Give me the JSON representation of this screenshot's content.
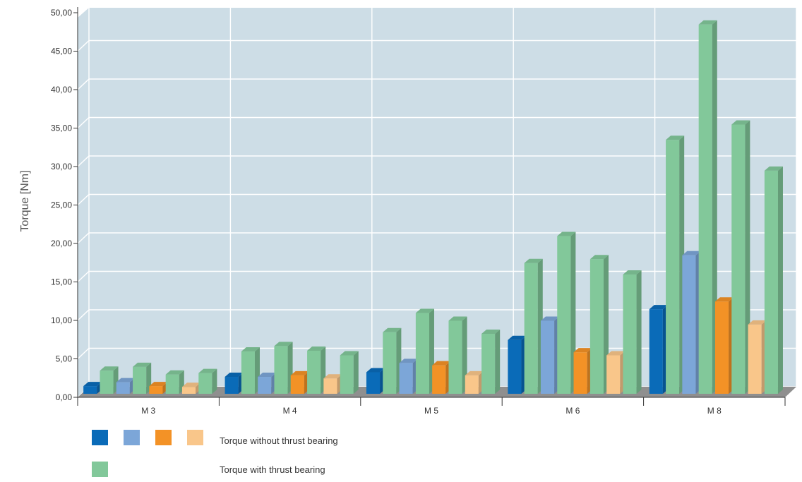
{
  "chart_data": {
    "type": "bar",
    "title": "",
    "xlabel": "",
    "ylabel": "Torque [Nm]",
    "ylim": [
      0,
      50
    ],
    "y_ticks": [
      "0,00",
      "5,00",
      "10,00",
      "15,00",
      "20,00",
      "25,00",
      "30,00",
      "35,00",
      "40,00",
      "45,00",
      "50,00"
    ],
    "categories": [
      "M 3",
      "M 4",
      "M 5",
      "M 6",
      "M 8"
    ],
    "grid": true,
    "three_d": true,
    "legend_position": "bottom",
    "series": [
      {
        "color": "#0a6bb8",
        "values": [
          1.0,
          2.2,
          2.8,
          7.0,
          11.0
        ]
      },
      {
        "color": "#82c89a",
        "values": [
          3.0,
          5.5,
          8.0,
          17.0,
          33.0
        ]
      },
      {
        "color": "#7ca6d8",
        "values": [
          1.5,
          2.2,
          4.0,
          9.5,
          18.0
        ]
      },
      {
        "color": "#82c89a",
        "values": [
          3.5,
          6.2,
          10.5,
          20.5,
          48.0
        ]
      },
      {
        "color": "#f39226",
        "values": [
          1.0,
          2.4,
          3.7,
          5.4,
          12.0
        ]
      },
      {
        "color": "#82c89a",
        "values": [
          2.5,
          5.6,
          9.5,
          17.5,
          35.0
        ]
      },
      {
        "color": "#f9c68a",
        "values": [
          0.9,
          2.0,
          2.4,
          5.0,
          9.0
        ]
      },
      {
        "color": "#82c89a",
        "values": [
          2.7,
          5.0,
          7.8,
          15.5,
          29.0
        ]
      }
    ],
    "legend": {
      "without": {
        "label": "Torque without thrust bearing",
        "colors": [
          "#0a6bb8",
          "#7ca6d8",
          "#f39226",
          "#f9c68a"
        ]
      },
      "with": {
        "label": "Torque with thrust bearing",
        "colors": [
          "#82c89a"
        ]
      }
    },
    "colors": {
      "plot_background": "#cddde6",
      "grid": "#ffffff",
      "floor": "#8f8f8f",
      "axis": "#333333"
    }
  }
}
